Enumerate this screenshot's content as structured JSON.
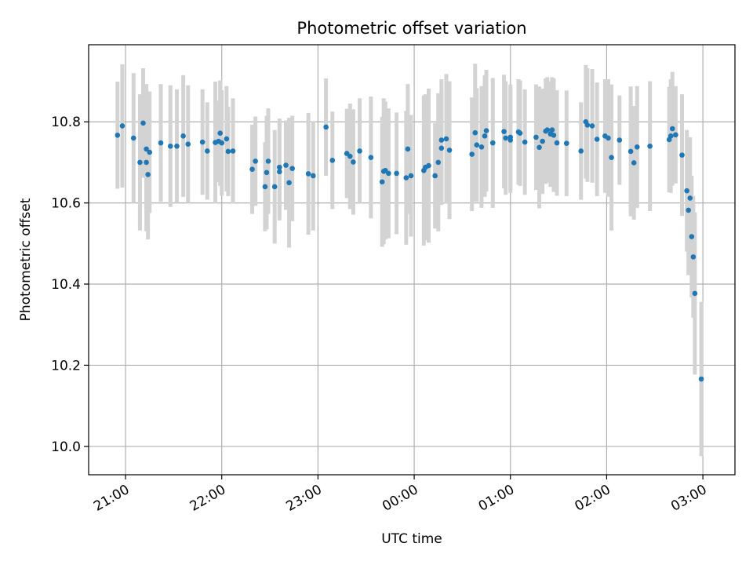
{
  "chart_data": {
    "type": "scatter",
    "title": "Photometric offset variation",
    "xlabel": "UTC time",
    "ylabel": "Photometric offset",
    "x_axis": "time (hours since 21:00 UTC, ticks labelled HH:MM)",
    "xlim": [
      "20:37",
      "03:20"
    ],
    "ylim": [
      9.93,
      10.99
    ],
    "xticks": [
      "21:00",
      "22:00",
      "23:00",
      "00:00",
      "01:00",
      "02:00",
      "03:00"
    ],
    "yticks": [
      "10.0",
      "10.2",
      "10.4",
      "10.6",
      "10.8"
    ],
    "grid": true,
    "colors": {
      "point": "#1f77b4",
      "errorbar": "#d3d3d3",
      "grid": "#b0b0b0"
    },
    "points": [
      [
        "20:55",
        10.767,
        0.132
      ],
      [
        "20:58",
        10.79,
        0.152
      ],
      [
        "21:05",
        10.76,
        0.16
      ],
      [
        "21:09",
        10.7,
        0.168
      ],
      [
        "21:11",
        10.797,
        0.135
      ],
      [
        "21:13",
        10.733,
        0.16
      ],
      [
        "21:13",
        10.7,
        0.17
      ],
      [
        "21:14",
        10.67,
        0.16
      ],
      [
        "21:15",
        10.725,
        0.15
      ],
      [
        "21:22",
        10.748,
        0.145
      ],
      [
        "21:28",
        10.74,
        0.15
      ],
      [
        "21:32",
        10.74,
        0.14
      ],
      [
        "21:36",
        10.765,
        0.15
      ],
      [
        "21:39",
        10.745,
        0.145
      ],
      [
        "21:48",
        10.75,
        0.13
      ],
      [
        "21:51",
        10.728,
        0.12
      ],
      [
        "21:56",
        10.749,
        0.15
      ],
      [
        "21:58",
        10.752,
        0.1
      ],
      [
        "21:59",
        10.772,
        0.13
      ],
      [
        "22:00",
        10.748,
        0.13
      ],
      [
        "22:03",
        10.758,
        0.13
      ],
      [
        "22:04",
        10.727,
        0.11
      ],
      [
        "22:07",
        10.728,
        0.13
      ],
      [
        "22:19",
        10.683,
        0.11
      ],
      [
        "22:21",
        10.703,
        0.11
      ],
      [
        "22:27",
        10.64,
        0.11
      ],
      [
        "22:28",
        10.675,
        0.14
      ],
      [
        "22:29",
        10.703,
        0.13
      ],
      [
        "22:33",
        10.64,
        0.14
      ],
      [
        "22:36",
        10.688,
        0.12
      ],
      [
        "22:36",
        10.677,
        0.12
      ],
      [
        "22:40",
        10.693,
        0.11
      ],
      [
        "22:42",
        10.65,
        0.16
      ],
      [
        "22:44",
        10.685,
        0.13
      ],
      [
        "22:54",
        10.672,
        0.15
      ],
      [
        "22:57",
        10.667,
        0.135
      ],
      [
        "23:05",
        10.787,
        0.12
      ],
      [
        "23:09",
        10.705,
        0.12
      ],
      [
        "23:18",
        10.722,
        0.11
      ],
      [
        "23:20",
        10.715,
        0.13
      ],
      [
        "23:22",
        10.701,
        0.13
      ],
      [
        "23:26",
        10.728,
        0.13
      ],
      [
        "23:33",
        10.712,
        0.15
      ],
      [
        "23:40",
        10.652,
        0.16
      ],
      [
        "23:41",
        10.678,
        0.18
      ],
      [
        "23:42",
        10.68,
        0.17
      ],
      [
        "23:44",
        10.673,
        0.16
      ],
      [
        "23:49",
        10.673,
        0.15
      ],
      [
        "23:55",
        10.662,
        0.165
      ],
      [
        "23:56",
        10.733,
        0.16
      ],
      [
        "23:58",
        10.667,
        0.15
      ],
      [
        "00:06",
        10.68,
        0.185
      ],
      [
        "00:07",
        10.688,
        0.18
      ],
      [
        "00:09",
        10.692,
        0.19
      ],
      [
        "00:13",
        10.667,
        0.13
      ],
      [
        "00:15",
        10.7,
        0.17
      ],
      [
        "00:17",
        10.735,
        0.14
      ],
      [
        "00:17",
        10.755,
        0.15
      ],
      [
        "00:20",
        10.758,
        0.16
      ],
      [
        "00:22",
        10.73,
        0.17
      ],
      [
        "00:36",
        10.72,
        0.14
      ],
      [
        "00:38",
        10.773,
        0.17
      ],
      [
        "00:39",
        10.743,
        0.14
      ],
      [
        "00:42",
        10.738,
        0.15
      ],
      [
        "00:44",
        10.765,
        0.15
      ],
      [
        "00:45",
        10.778,
        0.15
      ],
      [
        "00:49",
        10.748,
        0.16
      ],
      [
        "00:56",
        10.776,
        0.14
      ],
      [
        "00:57",
        10.76,
        0.14
      ],
      [
        "01:00",
        10.762,
        0.13
      ],
      [
        "01:00",
        10.755,
        0.13
      ],
      [
        "01:05",
        10.775,
        0.13
      ],
      [
        "01:06",
        10.772,
        0.13
      ],
      [
        "01:09",
        10.75,
        0.13
      ],
      [
        "01:16",
        10.762,
        0.13
      ],
      [
        "01:18",
        10.737,
        0.15
      ],
      [
        "01:20",
        10.752,
        0.13
      ],
      [
        "01:22",
        10.777,
        0.13
      ],
      [
        "01:23",
        10.78,
        0.13
      ],
      [
        "01:25",
        10.77,
        0.13
      ],
      [
        "01:26",
        10.78,
        0.13
      ],
      [
        "01:27",
        10.767,
        0.14
      ],
      [
        "01:29",
        10.748,
        0.13
      ],
      [
        "01:35",
        10.747,
        0.13
      ],
      [
        "01:44",
        10.728,
        0.12
      ],
      [
        "01:47",
        10.8,
        0.14
      ],
      [
        "01:48",
        10.792,
        0.14
      ],
      [
        "01:51",
        10.79,
        0.14
      ],
      [
        "01:54",
        10.757,
        0.14
      ],
      [
        "01:59",
        10.765,
        0.14
      ],
      [
        "02:01",
        10.76,
        0.145
      ],
      [
        "02:03",
        10.712,
        0.18
      ],
      [
        "02:08",
        10.755,
        0.11
      ],
      [
        "02:15",
        10.727,
        0.16
      ],
      [
        "02:17",
        10.699,
        0.14
      ],
      [
        "02:19",
        10.738,
        0.15
      ],
      [
        "02:27",
        10.74,
        0.16
      ],
      [
        "02:39",
        10.756,
        0.13
      ],
      [
        "02:40",
        10.765,
        0.14
      ],
      [
        "02:41",
        10.783,
        0.14
      ],
      [
        "02:43",
        10.768,
        0.12
      ],
      [
        "02:47",
        10.718,
        0.15
      ],
      [
        "02:50",
        10.63,
        0.15
      ],
      [
        "02:51",
        10.582,
        0.16
      ],
      [
        "02:52",
        10.612,
        0.15
      ],
      [
        "02:53",
        10.517,
        0.15
      ],
      [
        "02:54",
        10.467,
        0.15
      ],
      [
        "02:55",
        10.377,
        0.2
      ],
      [
        "02:59",
        10.166,
        0.19
      ]
    ]
  }
}
